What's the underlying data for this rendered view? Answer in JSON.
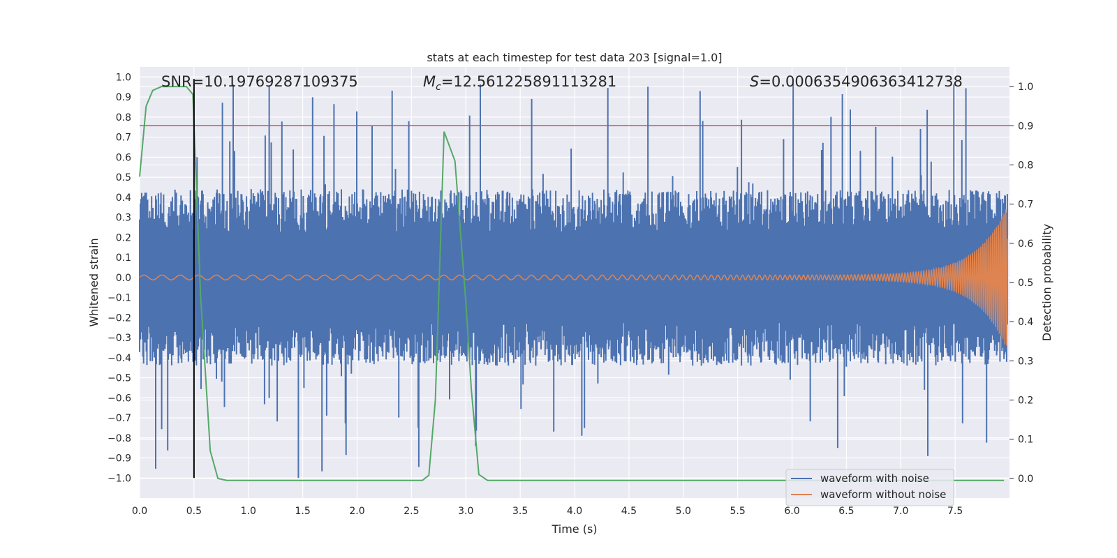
{
  "chart_data": {
    "type": "line",
    "title": "stats at each timestep for test data 203 [signal=1.0]",
    "xlabel": "Time (s)",
    "ylabel": "Whitened strain",
    "y2label": "Detection probability",
    "xlim": [
      0.0,
      8.0
    ],
    "ylim": [
      -1.1,
      1.05
    ],
    "y2lim": [
      -0.05,
      1.05
    ],
    "grid": true,
    "legend_position": "lower-right",
    "x_ticks": [
      "0.0",
      "0.5",
      "1.0",
      "1.5",
      "2.0",
      "2.5",
      "3.0",
      "3.5",
      "4.0",
      "4.5",
      "5.0",
      "5.5",
      "6.0",
      "6.5",
      "7.0",
      "7.5"
    ],
    "y_ticks": [
      "1.0",
      "0.9",
      "0.8",
      "0.7",
      "0.6",
      "0.5",
      "0.4",
      "0.3",
      "0.2",
      "0.1",
      "0.0",
      "−0.1",
      "−0.2",
      "−0.3",
      "−0.4",
      "−0.5",
      "−0.6",
      "−0.7",
      "−0.8",
      "−0.9",
      "−1.0"
    ],
    "y2_ticks": [
      "1.0",
      "0.9",
      "0.8",
      "0.7",
      "0.6",
      "0.5",
      "0.4",
      "0.3",
      "0.2",
      "0.1",
      "0.0"
    ],
    "stats": {
      "snr": "SNR=10.19769287109375",
      "mc_symbol": "M",
      "mc_sub": "c",
      "mc_value": "=12.561225891113281",
      "s_symbol": "S",
      "s_value": "=0.0006354906363412738"
    },
    "series": [
      {
        "name": "waveform with noise",
        "color": "#4c72b0",
        "axis": "left",
        "description_stats": {
          "typical_upper": 0.4,
          "typical_lower": -0.4,
          "max": 0.97,
          "min": -1.0
        }
      },
      {
        "name": "waveform without noise",
        "color": "#dd8452",
        "axis": "left",
        "chirp": {
          "start_amplitude": 0.012,
          "end_amplitude": 0.36,
          "start_freq_hz": 6,
          "end_freq_hz": 60
        }
      },
      {
        "name": "detection probability",
        "color": "#55a868",
        "axis": "right",
        "x": [
          0.0,
          0.06,
          0.12,
          0.2,
          0.3,
          0.43,
          0.49,
          0.5,
          0.56,
          0.65,
          0.68,
          0.72,
          0.8,
          1.0,
          2.0,
          2.6,
          2.66,
          2.72,
          2.8,
          2.9,
          3.0,
          3.05,
          3.12,
          3.2,
          3.5,
          7.95
        ],
        "y": [
          0.77,
          0.95,
          0.99,
          1.0,
          1.0,
          1.0,
          0.98,
          0.9,
          0.47,
          0.07,
          0.04,
          0.0,
          -0.005,
          -0.005,
          -0.005,
          -0.005,
          0.008,
          0.2,
          0.885,
          0.81,
          0.45,
          0.23,
          0.01,
          -0.005,
          -0.005,
          -0.005
        ]
      }
    ],
    "threshold_line": {
      "value": 0.9,
      "axis": "right",
      "color": "#c44e52"
    },
    "marker_line": {
      "x": 0.5,
      "y_from": -1.0,
      "y_to": 0.99,
      "color": "#000000"
    }
  },
  "legend": {
    "items": [
      {
        "label": "waveform with noise",
        "color": "#4c72b0"
      },
      {
        "label": "waveform without noise",
        "color": "#dd8452"
      }
    ]
  }
}
